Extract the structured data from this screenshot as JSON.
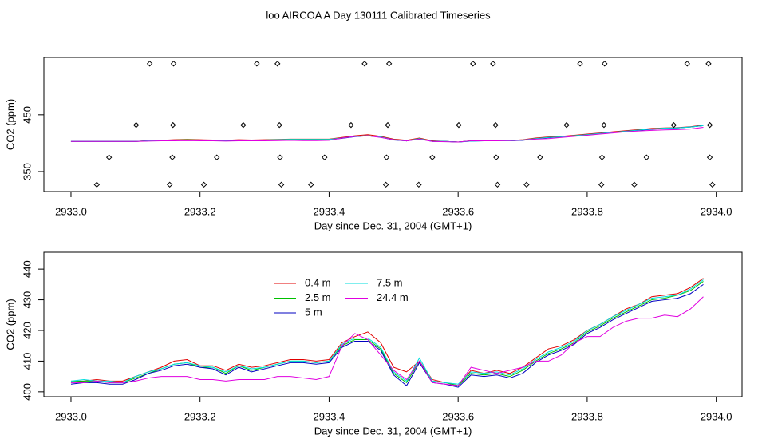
{
  "chart_data": [
    {
      "type": "line",
      "title": "loo AIRCOA A  Day 130111  Calibrated Timeseries",
      "xlabel": "Day since Dec. 31, 2004 (GMT+1)",
      "ylabel": "CO2 (ppm)",
      "xlim": [
        2932.958,
        2934.04
      ],
      "xticks": [
        {
          "value": 2933,
          "label": "2933.0"
        },
        2933.2,
        2933.4,
        2933.6,
        2933.8,
        {
          "value": 2934,
          "label": "2934.0"
        }
      ],
      "ylim": [
        314.8,
        551
      ],
      "yticks": [
        350,
        450
      ],
      "x": [
        2933.0,
        2933.02,
        2933.04,
        2933.06,
        2933.08,
        2933.1,
        2933.12,
        2933.14,
        2933.16,
        2933.18,
        2933.2,
        2933.22,
        2933.24,
        2933.26,
        2933.28,
        2933.3,
        2933.32,
        2933.34,
        2933.36,
        2933.38,
        2933.4,
        2933.42,
        2933.44,
        2933.46,
        2933.48,
        2933.5,
        2933.52,
        2933.54,
        2933.56,
        2933.58,
        2933.6,
        2933.62,
        2933.64,
        2933.66,
        2933.68,
        2933.7,
        2933.72,
        2933.74,
        2933.76,
        2933.78,
        2933.8,
        2933.82,
        2933.84,
        2933.86,
        2933.88,
        2933.9,
        2933.92,
        2933.94,
        2933.96,
        2933.98
      ],
      "series": [
        {
          "color": "#e00000",
          "values": [
            403,
            403,
            403,
            403,
            403,
            403,
            404.5,
            405,
            406,
            406.5,
            406,
            405.5,
            405,
            406,
            405.5,
            406,
            406.5,
            407,
            407,
            407,
            407,
            410,
            413,
            415,
            412,
            407,
            405,
            409,
            404,
            403,
            402,
            404,
            404,
            404.5,
            404.5,
            406,
            409,
            411,
            412,
            414,
            416,
            418,
            420,
            422,
            424,
            426,
            427,
            427.5,
            429,
            432
          ]
        },
        {
          "color": "#00c000",
          "values": [
            403,
            403,
            403,
            403,
            403,
            403,
            404,
            404.5,
            405.5,
            406,
            405.5,
            405,
            405,
            405.5,
            405,
            405.5,
            406,
            406.5,
            406.5,
            406.5,
            406.5,
            409,
            412,
            413,
            411,
            406,
            404,
            408,
            403,
            403,
            402,
            404,
            404,
            404,
            404,
            405.5,
            408,
            410,
            411,
            413,
            415,
            417,
            419,
            421,
            423,
            425,
            426.5,
            427,
            428.5,
            431
          ]
        },
        {
          "color": "#0000c0",
          "values": [
            403,
            403,
            403,
            403,
            403,
            403,
            404,
            404.5,
            405,
            405.5,
            405,
            405,
            404.5,
            405,
            405,
            405.5,
            405.5,
            406,
            406,
            406,
            406,
            408.5,
            411.5,
            413,
            410.5,
            405.5,
            404,
            407.5,
            403,
            403,
            402,
            403.5,
            404,
            404,
            404,
            405,
            407.5,
            409.5,
            411,
            413,
            414.5,
            417,
            419,
            421,
            422.5,
            424.5,
            426,
            427,
            428.5,
            431
          ]
        },
        {
          "color": "#00dede",
          "values": [
            403,
            403,
            403,
            403,
            403,
            403,
            404,
            404.5,
            405,
            405.5,
            405.5,
            405,
            405,
            405.5,
            405,
            405.5,
            406,
            406.5,
            406.5,
            406.5,
            406.5,
            409,
            412,
            413,
            411,
            406,
            404,
            408,
            403,
            403,
            402,
            403.5,
            404,
            404,
            404,
            405.5,
            408,
            410,
            411,
            413,
            415,
            417,
            419,
            421,
            423,
            425,
            426.5,
            427,
            428.5,
            431
          ]
        },
        {
          "color": "#e000e0",
          "values": [
            403,
            403,
            403,
            403,
            403,
            403,
            403.5,
            404,
            404,
            404.5,
            404,
            404,
            403.5,
            404,
            404,
            404,
            404.5,
            405,
            404.5,
            404.5,
            405,
            409,
            412,
            413,
            410,
            406,
            404,
            407,
            403,
            402.5,
            402,
            404,
            404,
            404,
            404.5,
            405.5,
            407,
            408,
            410,
            412,
            414,
            416,
            418,
            420,
            421.5,
            422.5,
            423.5,
            424,
            425,
            428
          ]
        }
      ],
      "markers": {
        "x": [
          2933.122,
          2933.159,
          2933.288,
          2933.32,
          2933.455,
          2933.493,
          2933.623,
          2933.654,
          2933.789,
          2933.827,
          2933.955,
          2933.988,
          2933.101,
          2933.158,
          2933.267,
          2933.323,
          2933.434,
          2933.491,
          2933.601,
          2933.658,
          2933.768,
          2933.826,
          2933.934,
          2933.99,
          2933.059,
          2933.157,
          2933.226,
          2933.324,
          2933.393,
          2933.489,
          2933.56,
          2933.659,
          2933.727,
          2933.823,
          2933.892,
          2933.99,
          2933.04,
          2933.153,
          2933.206,
          2933.326,
          2933.372,
          2933.488,
          2933.539,
          2933.661,
          2933.706,
          2933.822,
          2933.873,
          2933.994
        ],
        "y": [
          540,
          540,
          540,
          540,
          540,
          540,
          540,
          540,
          540,
          540,
          540,
          540,
          432,
          432,
          432,
          432,
          432,
          432,
          432,
          432,
          432,
          432,
          432,
          432,
          375,
          375,
          375,
          375,
          375,
          375,
          375,
          375,
          375,
          375,
          375,
          375,
          327,
          327,
          327,
          327,
          327,
          327,
          327,
          327,
          327,
          327,
          327,
          327
        ]
      }
    },
    {
      "type": "line",
      "xlabel": "Day since Dec. 31, 2004 (GMT+1)",
      "ylabel": "CO2 (ppm)",
      "xlim": [
        2932.958,
        2934.04
      ],
      "xticks": [
        {
          "value": 2933,
          "label": "2933.0"
        },
        2933.2,
        2933.4,
        2933.6,
        2933.8,
        {
          "value": 2934,
          "label": "2934.0"
        }
      ],
      "ylim": [
        398.4,
        445.5
      ],
      "yticks": [
        400,
        410,
        420,
        430,
        440
      ],
      "x": [
        2933.0,
        2933.02,
        2933.04,
        2933.06,
        2933.08,
        2933.1,
        2933.12,
        2933.14,
        2933.16,
        2933.18,
        2933.2,
        2933.22,
        2933.24,
        2933.26,
        2933.28,
        2933.3,
        2933.32,
        2933.34,
        2933.36,
        2933.38,
        2933.4,
        2933.42,
        2933.44,
        2933.46,
        2933.48,
        2933.5,
        2933.52,
        2933.54,
        2933.56,
        2933.58,
        2933.6,
        2933.62,
        2933.64,
        2933.66,
        2933.68,
        2933.7,
        2933.72,
        2933.74,
        2933.76,
        2933.78,
        2933.8,
        2933.82,
        2933.84,
        2933.86,
        2933.88,
        2933.9,
        2933.92,
        2933.94,
        2933.96,
        2933.98
      ],
      "series": [
        {
          "name": "0.4 m",
          "color": "#e00000",
          "values": [
            403,
            403.5,
            404,
            403.5,
            403.5,
            405,
            406.5,
            408,
            410,
            410.5,
            408.5,
            408.5,
            407,
            409,
            408,
            408.5,
            409.5,
            410.5,
            410.5,
            410,
            410.5,
            416,
            418,
            419.5,
            416,
            408,
            406.5,
            410,
            404,
            403,
            402,
            407,
            406,
            407,
            406,
            408,
            411,
            414,
            415,
            417,
            420,
            422,
            424.5,
            427,
            428.5,
            431,
            431.5,
            432,
            434,
            437
          ]
        },
        {
          "name": "2.5 m",
          "color": "#00c000",
          "values": [
            403.5,
            403.5,
            403.5,
            403,
            403,
            404.5,
            406,
            407.5,
            409,
            409.5,
            408,
            408,
            406,
            408.5,
            407,
            408,
            409,
            410,
            410,
            409.5,
            410,
            415,
            417,
            417,
            414,
            406,
            403,
            410,
            403.5,
            403,
            402,
            406,
            405.5,
            406,
            405,
            407,
            410,
            412.5,
            414,
            416,
            419.5,
            421.5,
            424,
            426,
            428,
            430,
            430.5,
            431.5,
            433,
            436
          ]
        },
        {
          "name": "5 m",
          "color": "#0000c0",
          "values": [
            402.5,
            403,
            403,
            402.5,
            402.5,
            404,
            406,
            407,
            408.5,
            409,
            408,
            407.5,
            405.5,
            408,
            406.5,
            407.5,
            408.5,
            409.5,
            409.5,
            409,
            409.5,
            414.5,
            416.5,
            416.5,
            413.5,
            405.5,
            402,
            409.5,
            403,
            402.5,
            401.5,
            405.5,
            405,
            405.5,
            404.5,
            406,
            409.5,
            412,
            413.5,
            415.5,
            419,
            421,
            423.5,
            425.5,
            427.5,
            429.5,
            430,
            430.5,
            432,
            435
          ]
        },
        {
          "name": "7.5 m",
          "color": "#00dede",
          "values": [
            403.5,
            404,
            403.5,
            403.5,
            403,
            405,
            406.5,
            407.5,
            409,
            409.5,
            408.5,
            408,
            406.5,
            408.5,
            407.5,
            408,
            409,
            410,
            410,
            409.5,
            410,
            415.5,
            417.5,
            417.5,
            414.5,
            406.5,
            403.5,
            411,
            403.5,
            403,
            402.5,
            406.5,
            406,
            406.5,
            405.5,
            407.5,
            410.5,
            413,
            414.5,
            416.5,
            420,
            422,
            424.5,
            426.5,
            428.5,
            430.5,
            431,
            431.5,
            433.5,
            436.5
          ]
        },
        {
          "name": "24.4 m",
          "color": "#e000e0",
          "values": [
            403,
            403,
            403.5,
            403,
            403,
            403.5,
            404.5,
            405,
            405,
            405,
            404,
            404,
            403.5,
            404,
            404,
            404,
            405,
            405,
            404.5,
            404,
            405,
            415,
            419,
            417,
            412,
            407,
            404,
            410,
            403,
            402.5,
            402,
            408,
            407,
            406,
            407,
            408,
            410,
            410,
            412,
            416,
            418,
            418,
            421,
            423,
            424,
            424,
            425,
            424.5,
            427,
            431
          ]
        }
      ]
    }
  ]
}
